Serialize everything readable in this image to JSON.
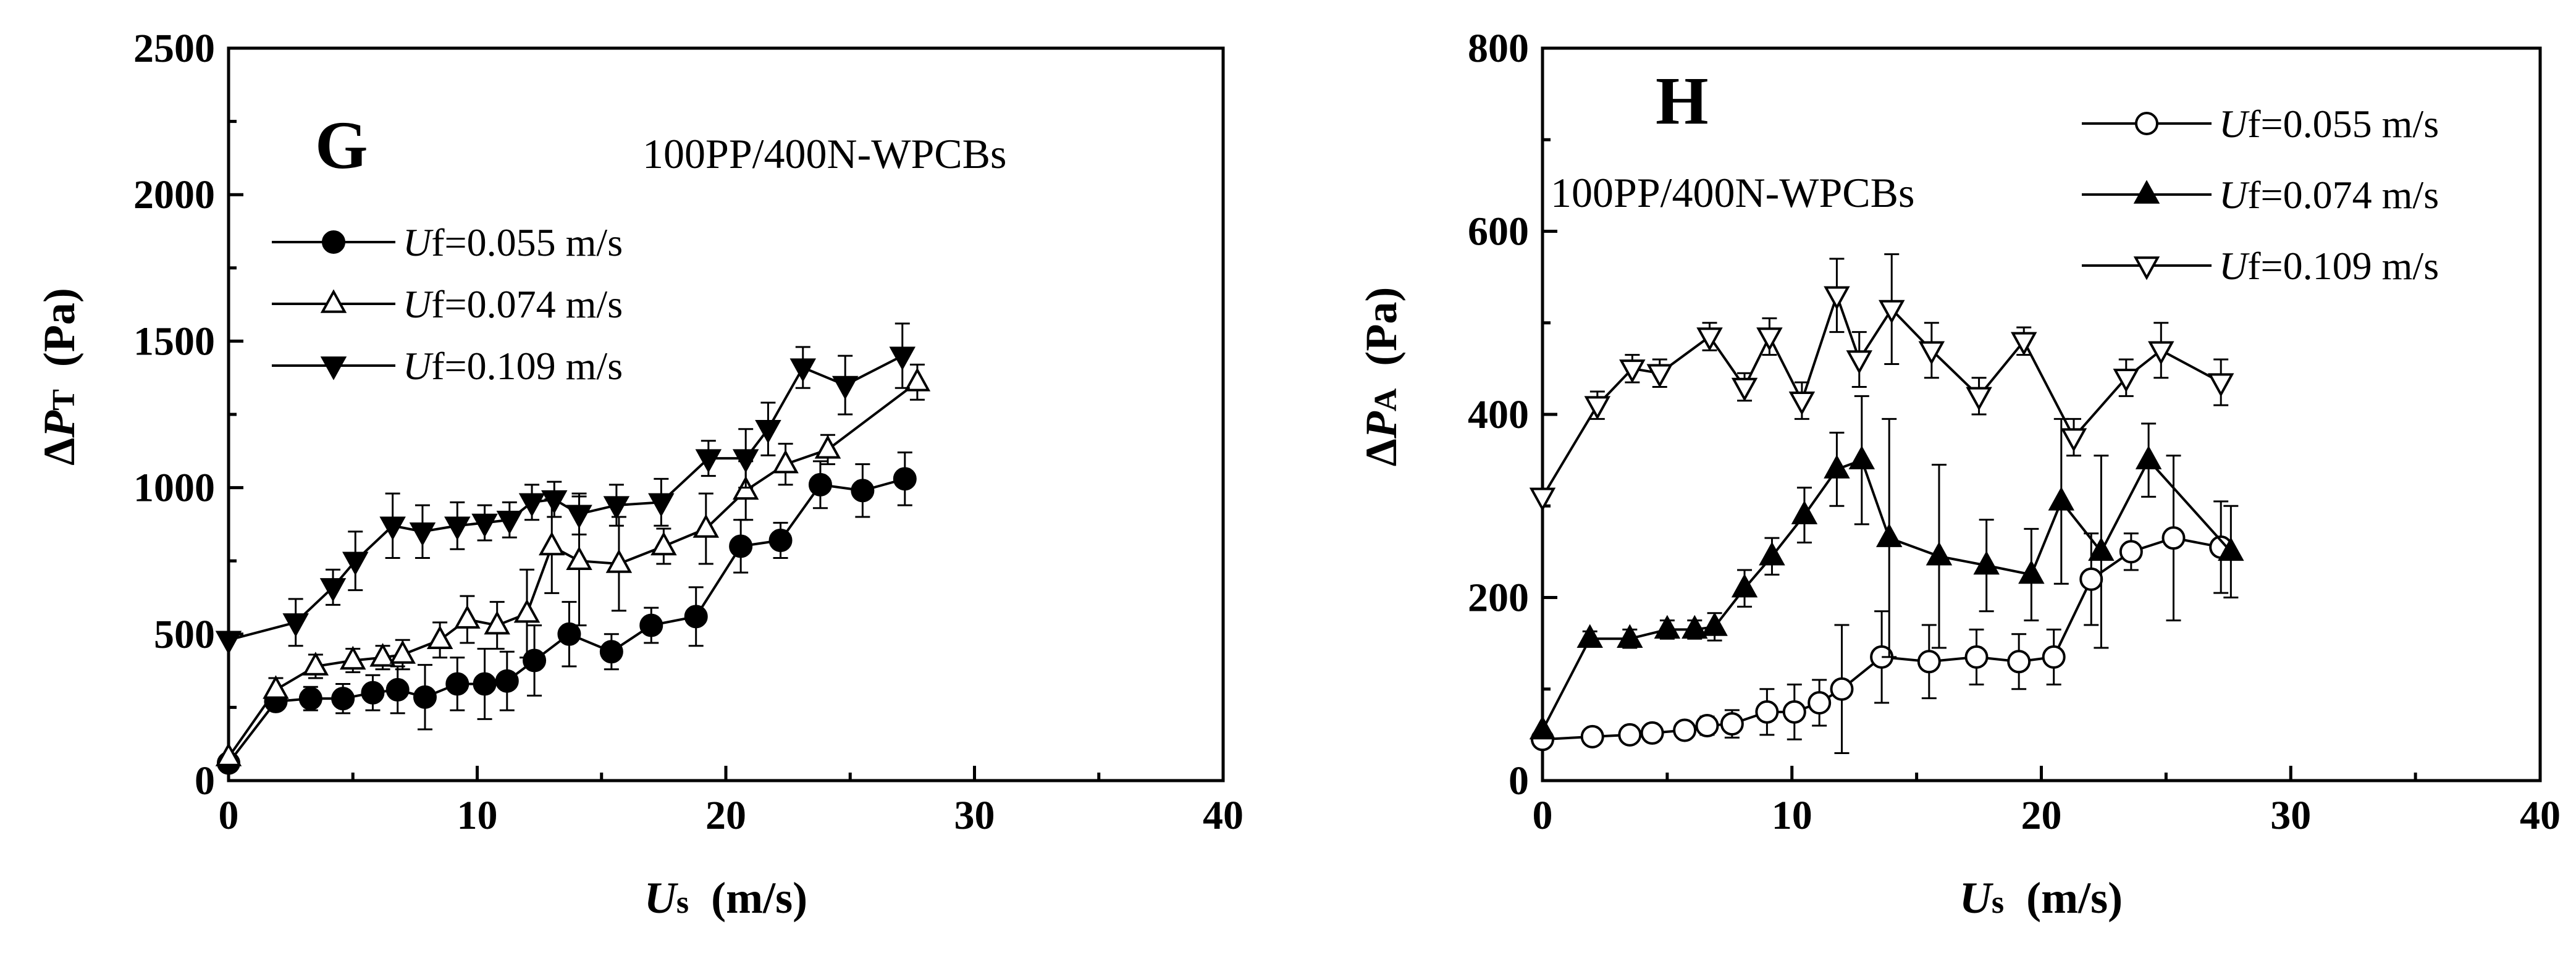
{
  "chart_data": [
    {
      "type": "line",
      "panel": "G",
      "annotation": "100PP/400N-WPCBs",
      "xlabel": "Us  (m/s)",
      "ylabel": "ΔPT  (Pa)",
      "xlim": [
        0,
        40
      ],
      "ylim": [
        0,
        2500
      ],
      "xticks": [
        "0",
        "10",
        "20",
        "30",
        "40"
      ],
      "yticks": [
        "0",
        "500",
        "1000",
        "1500",
        "2000",
        "2500"
      ],
      "legend_position": "upper-left",
      "series": [
        {
          "name": "Uf=0.055 m/s",
          "marker": "circle",
          "filled": true,
          "x": [
            0,
            1.9,
            3.3,
            4.6,
            5.8,
            6.8,
            7.9,
            9.2,
            10.3,
            11.2,
            12.3,
            13.7,
            15.4,
            17,
            18.8,
            20.6,
            22.2,
            23.8,
            25.5,
            27.2
          ],
          "y": [
            60,
            270,
            280,
            280,
            300,
            310,
            285,
            330,
            330,
            340,
            410,
            500,
            440,
            530,
            560,
            800,
            820,
            1010,
            990,
            1030
          ],
          "err": [
            0,
            20,
            40,
            50,
            60,
            80,
            110,
            90,
            120,
            100,
            120,
            110,
            60,
            60,
            100,
            90,
            60,
            80,
            90,
            90
          ]
        },
        {
          "name": "Uf=0.074 m/s",
          "marker": "triangle-up",
          "filled": false,
          "x": [
            0,
            1.9,
            3.5,
            5,
            6.2,
            7,
            8.5,
            9.6,
            10.8,
            12,
            13,
            14.1,
            15.7,
            17.5,
            19.2,
            20.8,
            22.4,
            24.1,
            27.7
          ],
          "y": [
            80,
            310,
            390,
            410,
            420,
            430,
            480,
            550,
            530,
            570,
            800,
            750,
            740,
            800,
            860,
            990,
            1080,
            1130,
            1360
          ],
          "err": [
            0,
            40,
            40,
            40,
            40,
            50,
            60,
            80,
            80,
            150,
            160,
            220,
            160,
            60,
            120,
            100,
            70,
            50,
            60
          ]
        },
        {
          "name": "Uf=0.109 m/s",
          "marker": "triangle-down",
          "filled": true,
          "x": [
            0,
            2.7,
            4.2,
            5.1,
            6.6,
            7.8,
            9.2,
            10.3,
            11.3,
            12.2,
            13.1,
            14.1,
            15.6,
            17.4,
            19.3,
            20.8,
            21.7,
            23.1,
            24.8,
            27.1
          ],
          "y": [
            480,
            540,
            660,
            750,
            870,
            850,
            870,
            880,
            890,
            950,
            960,
            910,
            940,
            950,
            1100,
            1100,
            1200,
            1410,
            1350,
            1450
          ],
          "err": [
            0,
            80,
            60,
            100,
            110,
            90,
            80,
            60,
            60,
            60,
            60,
            70,
            70,
            80,
            60,
            100,
            90,
            70,
            100,
            110
          ]
        }
      ]
    },
    {
      "type": "line",
      "panel": "H",
      "annotation": "100PP/400N-WPCBs",
      "xlabel": "Us  (m/s)",
      "ylabel": "ΔPA  (Pa)",
      "xlim": [
        0,
        40
      ],
      "ylim": [
        0,
        800
      ],
      "xticks": [
        "0",
        "10",
        "20",
        "30",
        "40"
      ],
      "yticks": [
        "0",
        "200",
        "400",
        "600",
        "800"
      ],
      "legend_position": "upper-right",
      "series": [
        {
          "name": "Uf=0.055 m/s",
          "marker": "circle",
          "filled": false,
          "x": [
            0,
            2,
            3.5,
            4.4,
            5.7,
            6.6,
            7.6,
            9,
            10.1,
            11.1,
            12,
            13.6,
            15.5,
            17.4,
            19.1,
            20.5,
            22,
            23.6,
            25.3,
            27.2
          ],
          "y": [
            45,
            48,
            50,
            52,
            55,
            60,
            62,
            75,
            75,
            85,
            100,
            135,
            130,
            135,
            130,
            135,
            220,
            250,
            265,
            255
          ],
          "err": [
            0,
            8,
            8,
            8,
            8,
            10,
            15,
            25,
            30,
            25,
            70,
            50,
            40,
            30,
            30,
            30,
            50,
            20,
            90,
            50
          ]
        },
        {
          "name": "Uf=0.074 m/s",
          "marker": "triangle-up",
          "filled": true,
          "x": [
            0,
            1.9,
            3.5,
            5,
            6.1,
            6.9,
            8.1,
            9.2,
            10.5,
            11.8,
            12.8,
            13.9,
            15.9,
            17.8,
            19.6,
            20.8,
            22.4,
            24.3,
            27.6
          ],
          "y": [
            55,
            155,
            155,
            165,
            165,
            168,
            210,
            245,
            290,
            340,
            350,
            265,
            245,
            235,
            225,
            305,
            250,
            350,
            250
          ],
          "err": [
            0,
            8,
            10,
            10,
            10,
            15,
            20,
            20,
            30,
            40,
            70,
            130,
            100,
            50,
            50,
            90,
            105,
            40,
            50
          ]
        },
        {
          "name": "Uf=0.109 m/s",
          "marker": "triangle-down",
          "filled": false,
          "x": [
            0,
            2.2,
            3.6,
            4.7,
            6.7,
            8.1,
            9.1,
            10.4,
            11.8,
            12.7,
            14,
            15.6,
            17.5,
            19.3,
            21.3,
            23.4,
            24.8,
            27.2
          ],
          "y": [
            310,
            410,
            450,
            445,
            485,
            430,
            485,
            415,
            530,
            460,
            515,
            470,
            420,
            480,
            375,
            440,
            470,
            435
          ],
          "err": [
            0,
            15,
            15,
            15,
            15,
            15,
            20,
            20,
            40,
            30,
            60,
            30,
            20,
            15,
            20,
            20,
            30,
            25
          ]
        }
      ]
    }
  ]
}
